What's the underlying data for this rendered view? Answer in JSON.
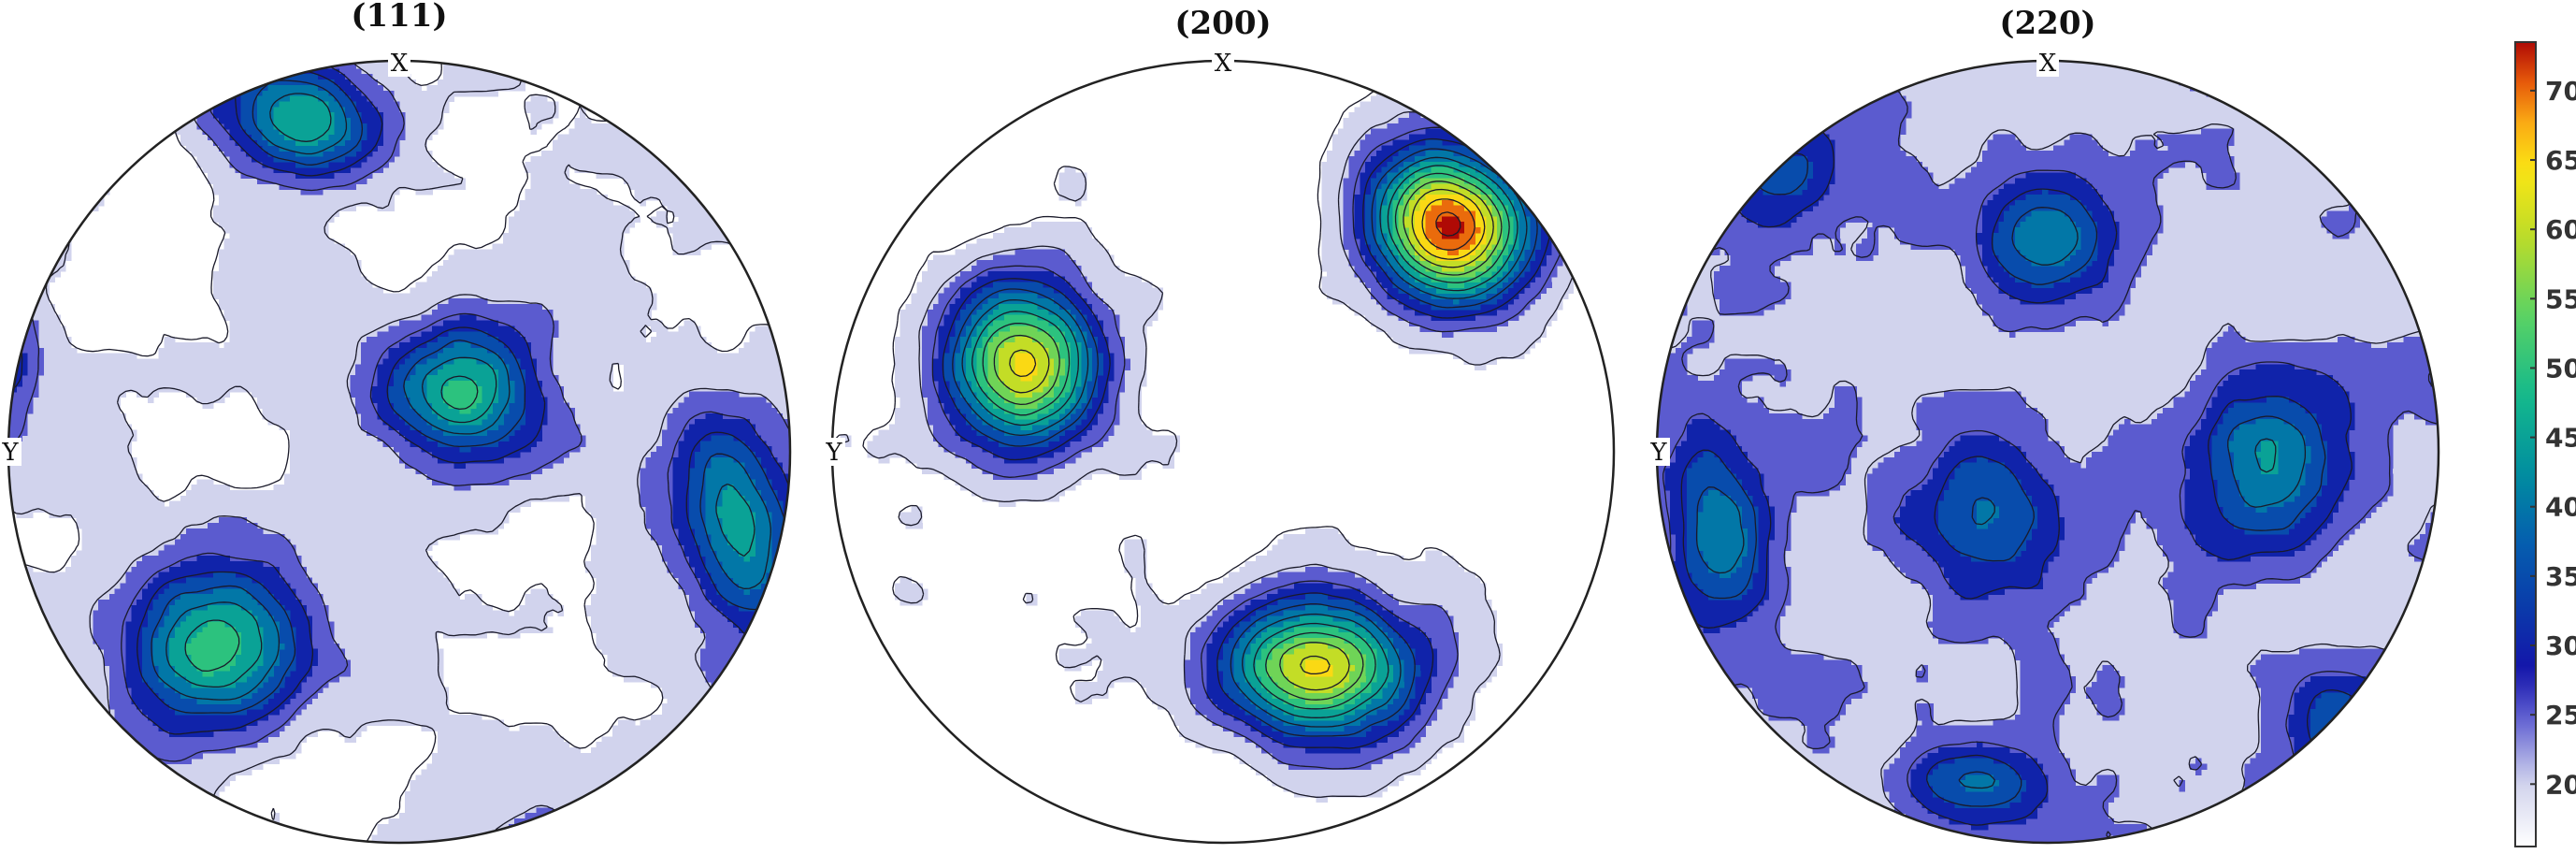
{
  "chart_data": [
    {
      "type": "heatmap",
      "subtype": "pole-figure-contour",
      "title": "(111)",
      "axis_labels": {
        "top": "X",
        "left": "Y"
      },
      "peaks": [
        {
          "x": -0.26,
          "y": 0.85,
          "value": 48,
          "sx": 0.15,
          "sy": 0.1,
          "rot": -10
        },
        {
          "x": 0.15,
          "y": 0.15,
          "value": 48,
          "sx": 0.14,
          "sy": 0.13,
          "rot": 0
        },
        {
          "x": -0.47,
          "y": -0.49,
          "value": 50,
          "sx": 0.16,
          "sy": 0.14,
          "rot": 20
        },
        {
          "x": 0.85,
          "y": -0.19,
          "value": 46,
          "sx": 0.1,
          "sy": 0.2,
          "rot": 10
        },
        {
          "x": -1.0,
          "y": 0.28,
          "value": 28,
          "sx": 0.05,
          "sy": 0.15,
          "rot": 0
        },
        {
          "x": 0.3,
          "y": -0.98,
          "value": 25,
          "sx": 0.12,
          "sy": 0.05,
          "rot": 0
        }
      ],
      "background_level": 17.5
    },
    {
      "type": "heatmap",
      "subtype": "pole-figure-contour",
      "title": "(200)",
      "axis_labels": {
        "top": "X",
        "left": "Y"
      },
      "peaks": [
        {
          "x": 0.57,
          "y": 0.58,
          "value": 72,
          "sx": 0.15,
          "sy": 0.13,
          "rot": -35
        },
        {
          "x": -0.51,
          "y": 0.23,
          "value": 63,
          "sx": 0.14,
          "sy": 0.15,
          "rot": 10
        },
        {
          "x": 0.24,
          "y": -0.54,
          "value": 62,
          "sx": 0.18,
          "sy": 0.13,
          "rot": -5
        }
      ],
      "background_level": 15
    },
    {
      "type": "heatmap",
      "subtype": "pole-figure-contour",
      "title": "(220)",
      "axis_labels": {
        "top": "X",
        "left": "Y"
      },
      "peaks": [
        {
          "x": 0.0,
          "y": 0.55,
          "value": 43,
          "sx": 0.13,
          "sy": 0.12,
          "rot": 0
        },
        {
          "x": 0.55,
          "y": -0.01,
          "value": 42,
          "sx": 0.14,
          "sy": 0.16,
          "rot": 0
        },
        {
          "x": -0.17,
          "y": -0.17,
          "value": 39,
          "sx": 0.14,
          "sy": 0.13,
          "rot": 0
        },
        {
          "x": -0.85,
          "y": -0.2,
          "value": 40,
          "sx": 0.09,
          "sy": 0.18,
          "rot": 10
        },
        {
          "x": -0.67,
          "y": 0.72,
          "value": 35,
          "sx": 0.1,
          "sy": 0.12,
          "rot": -40
        },
        {
          "x": -0.19,
          "y": -0.84,
          "value": 38,
          "sx": 0.14,
          "sy": 0.08,
          "rot": -5
        },
        {
          "x": 0.72,
          "y": -0.7,
          "value": 35,
          "sx": 0.09,
          "sy": 0.13,
          "rot": 35
        },
        {
          "x": 1.0,
          "y": 0.17,
          "value": 25,
          "sx": 0.04,
          "sy": 0.1,
          "rot": 0
        },
        {
          "x": 0.45,
          "y": 0.98,
          "value": 24,
          "sx": 0.15,
          "sy": 0.05,
          "rot": 0
        }
      ],
      "background_level": 21
    }
  ],
  "colorbar": {
    "min": 15.5,
    "max": 73.5,
    "ticks": [
      20,
      25,
      30,
      35,
      40,
      45,
      50,
      55,
      60,
      65,
      70
    ],
    "colormap": "parula-like"
  }
}
